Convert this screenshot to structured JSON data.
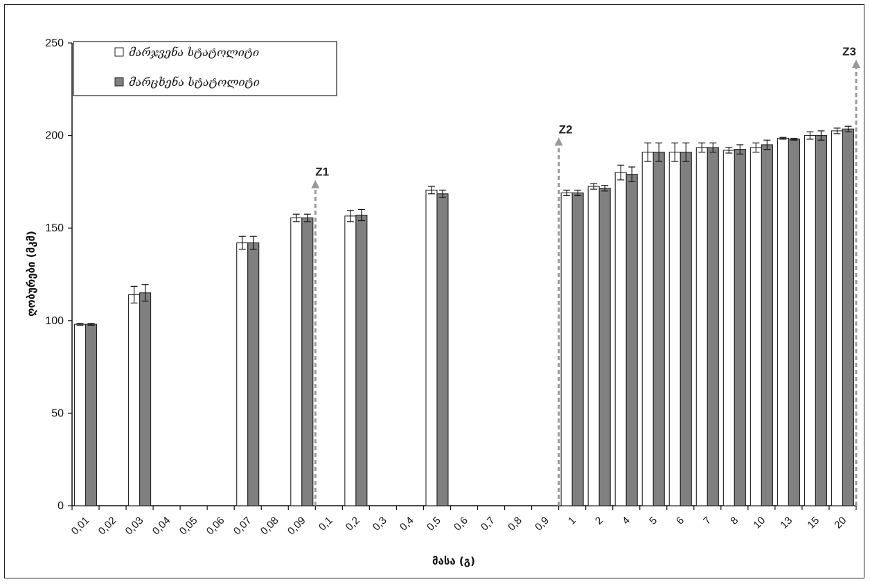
{
  "chart_data": {
    "type": "bar",
    "xlabel": "მასა (გ)",
    "ylabel": "ღობურები (მკმ)",
    "ylim": [
      0,
      250
    ],
    "yticks": [
      0,
      50,
      100,
      150,
      200,
      250
    ],
    "categories": [
      "0,01",
      "0,02",
      "0,03",
      "0,04",
      "0,05",
      "0,06",
      "0,07",
      "0,08",
      "0,09",
      "0,1",
      "0,2",
      "0,3",
      "0,4",
      "0,5",
      "0,6",
      "0,7",
      "0,8",
      "0,9",
      "1",
      "2",
      "4",
      "5",
      "6",
      "7",
      "8",
      "10",
      "13",
      "15",
      "20"
    ],
    "series": [
      {
        "name": "მარჯვენა სტატოლიტი",
        "color": "#ffffff",
        "values": [
          98,
          null,
          114,
          null,
          null,
          null,
          142,
          null,
          155.5,
          null,
          156.5,
          null,
          null,
          170.5,
          null,
          null,
          null,
          null,
          169,
          172.5,
          180,
          191,
          191,
          193.5,
          192,
          193.5,
          198.5,
          200,
          202.5
        ],
        "errors": [
          0.5,
          null,
          4.5,
          null,
          null,
          null,
          3.5,
          null,
          2,
          null,
          3,
          null,
          null,
          2,
          null,
          null,
          null,
          null,
          1.5,
          1.5,
          4,
          5,
          5,
          2.5,
          1.5,
          2.5,
          0.5,
          2,
          1.5
        ]
      },
      {
        "name": "მარცხენა სტატოლიტი",
        "color": "#808080",
        "values": [
          98,
          null,
          115,
          null,
          null,
          null,
          142,
          null,
          155.5,
          null,
          157,
          null,
          null,
          168.5,
          null,
          null,
          null,
          null,
          169,
          171.5,
          179,
          191,
          191,
          193.5,
          192.5,
          195,
          198,
          200,
          203.5
        ],
        "errors": [
          0.5,
          null,
          4.5,
          null,
          null,
          null,
          3.5,
          null,
          2,
          null,
          3,
          null,
          null,
          2,
          null,
          null,
          null,
          null,
          1.5,
          1.5,
          4,
          5,
          5,
          2.5,
          2.5,
          2.5,
          0.5,
          2.5,
          1.5
        ]
      }
    ],
    "annotations": [
      {
        "label": "Z1",
        "at_index": 9,
        "arrow_top": 176
      },
      {
        "label": "Z2",
        "at_index": 18,
        "arrow_top": 199
      },
      {
        "label": "Z3",
        "at_index": 29,
        "arrow_top": 241
      }
    ],
    "legend_position": "top-left",
    "grid": false
  }
}
